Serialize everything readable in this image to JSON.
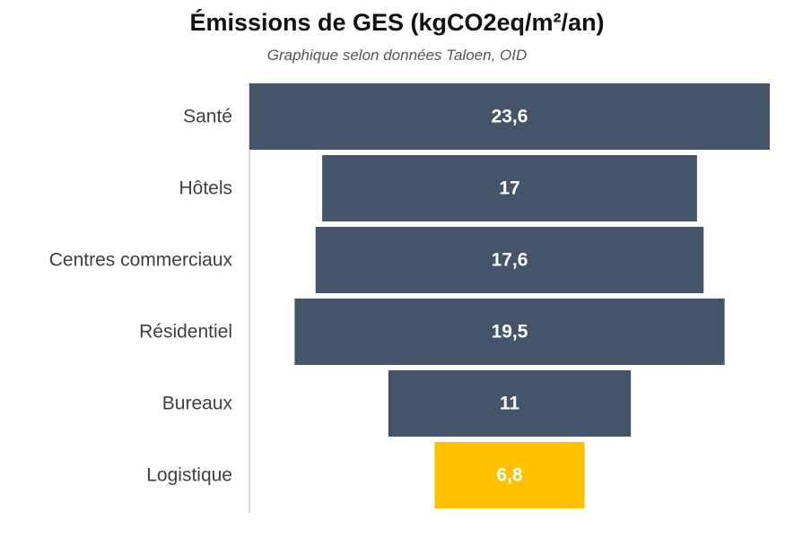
{
  "chart_data": {
    "type": "bar",
    "orientation": "horizontal-centered-funnel",
    "title": "Émissions de GES (kgCO2eq/m²/an)",
    "subtitle": "Graphique selon données Taloen, OID",
    "categories": [
      "Santé",
      "Hôtels",
      "Centres commerciaux",
      "Résidentiel",
      "Bureaux",
      "Logistique"
    ],
    "values": [
      23.6,
      17,
      17.6,
      19.5,
      11,
      6.8
    ],
    "value_labels": [
      "23,6",
      "17",
      "17,6",
      "19,5",
      "11",
      "6,8"
    ],
    "colors": [
      "#44546A",
      "#44546A",
      "#44546A",
      "#44546A",
      "#44546A",
      "#FFC000"
    ],
    "grid": false,
    "legend": "none"
  }
}
